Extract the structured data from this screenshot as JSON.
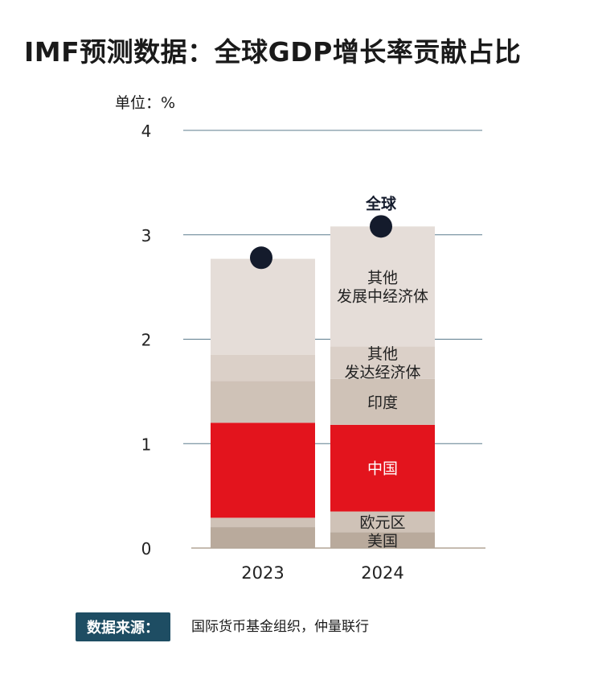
{
  "title": "IMF预测数据：全球GDP增长率贡献占比",
  "unit_label": "单位：%",
  "source": {
    "label": "数据来源：",
    "text": "国际货币基金组织，仲量联行"
  },
  "chart_data": {
    "type": "bar",
    "stacked": true,
    "categories": [
      "2023",
      "2024"
    ],
    "ylim": [
      0,
      4
    ],
    "yticks": [
      "0",
      "1",
      "2",
      "3",
      "4"
    ],
    "grid": true,
    "series": [
      {
        "name": "美国",
        "values": [
          0.2,
          0.15
        ],
        "color": "#b9aa9c"
      },
      {
        "name": "欧元区",
        "values": [
          0.09,
          0.2
        ],
        "color": "#cfc2b7"
      },
      {
        "name": "中国",
        "values": [
          0.91,
          0.83
        ],
        "color": "#e3141d"
      },
      {
        "name": "印度",
        "values": [
          0.4,
          0.44
        ],
        "color": "#cfc2b7"
      },
      {
        "name": "其他\n发达经济体",
        "values": [
          0.25,
          0.31
        ],
        "color": "#dbd0c8"
      },
      {
        "name": "其他\n发展中经济体",
        "values": [
          0.92,
          1.15
        ],
        "color": "#e5ddd8"
      }
    ],
    "total_series": {
      "name": "全球",
      "values": [
        2.78,
        3.08
      ],
      "color": "#141b2c"
    }
  }
}
